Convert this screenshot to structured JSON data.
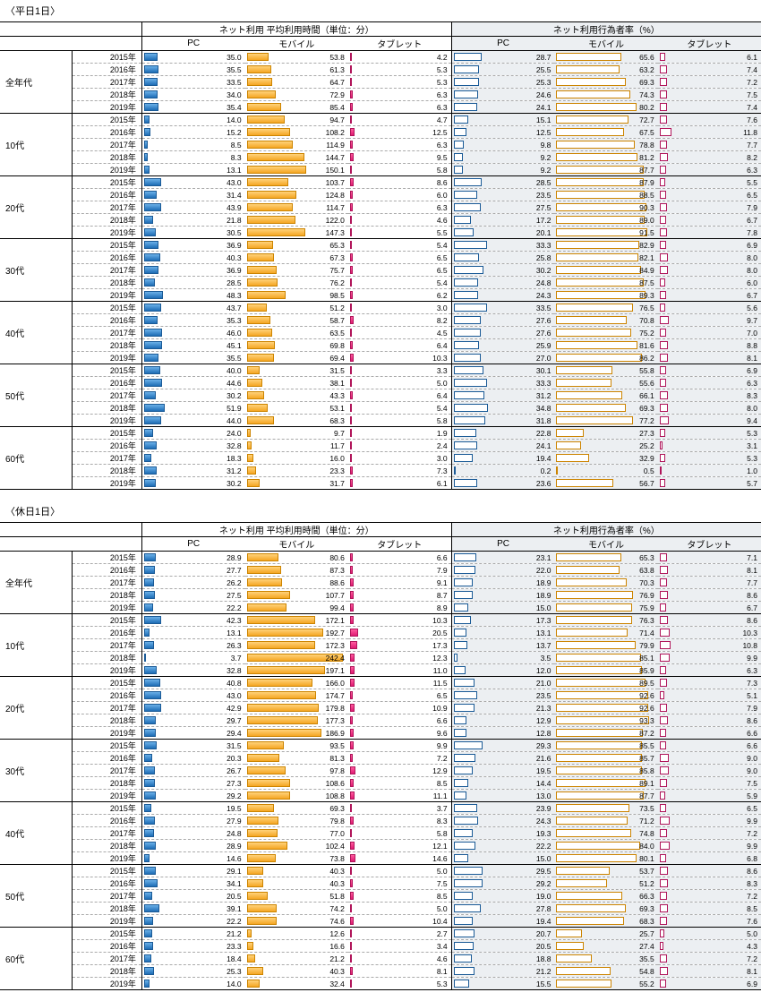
{
  "sections": [
    {
      "title": "〈平日1日〉",
      "header_time": "ネット利用 平均利用時間（単位：分）",
      "header_rate": "ネット利用行為者率（%）",
      "cols": [
        "PC",
        "モバイル",
        "タブレット",
        "PC",
        "モバイル",
        "タブレット"
      ],
      "groups": [
        {
          "age": "全年代",
          "rows": [
            [
              "2015年",
              35.0,
              53.8,
              4.2,
              28.7,
              65.6,
              6.1
            ],
            [
              "2016年",
              35.5,
              61.3,
              5.3,
              25.5,
              63.2,
              7.4
            ],
            [
              "2017年",
              33.5,
              64.7,
              5.3,
              25.3,
              69.3,
              7.2
            ],
            [
              "2018年",
              34.0,
              72.9,
              6.3,
              24.6,
              74.3,
              7.5
            ],
            [
              "2019年",
              35.4,
              85.4,
              6.3,
              24.1,
              80.2,
              7.4
            ]
          ]
        },
        {
          "age": "10代",
          "rows": [
            [
              "2015年",
              14.0,
              94.7,
              4.7,
              15.1,
              72.7,
              7.6
            ],
            [
              "2016年",
              15.2,
              108.2,
              12.5,
              12.5,
              67.5,
              11.8
            ],
            [
              "2017年",
              8.5,
              114.9,
              6.3,
              9.8,
              78.8,
              7.7
            ],
            [
              "2018年",
              8.3,
              144.7,
              9.5,
              9.2,
              81.2,
              8.2
            ],
            [
              "2019年",
              13.1,
              150.1,
              5.8,
              9.2,
              87.7,
              6.3
            ]
          ]
        },
        {
          "age": "20代",
          "rows": [
            [
              "2015年",
              43.0,
              103.7,
              8.6,
              28.5,
              87.9,
              5.5
            ],
            [
              "2016年",
              31.4,
              124.8,
              6.0,
              23.5,
              88.5,
              6.5
            ],
            [
              "2017年",
              43.9,
              114.7,
              6.3,
              27.5,
              90.3,
              7.9
            ],
            [
              "2018年",
              21.8,
              122.0,
              4.6,
              17.2,
              89.0,
              6.7
            ],
            [
              "2019年",
              30.5,
              147.3,
              5.5,
              20.1,
              91.5,
              7.8
            ]
          ]
        },
        {
          "age": "30代",
          "rows": [
            [
              "2015年",
              36.9,
              65.3,
              5.4,
              33.3,
              82.9,
              6.9
            ],
            [
              "2016年",
              40.3,
              67.3,
              6.5,
              25.8,
              82.1,
              8.0
            ],
            [
              "2017年",
              36.9,
              75.7,
              6.5,
              30.2,
              84.9,
              8.0
            ],
            [
              "2018年",
              28.5,
              76.2,
              5.4,
              24.8,
              87.5,
              6.0
            ],
            [
              "2019年",
              48.3,
              98.5,
              6.2,
              24.3,
              89.3,
              6.7
            ]
          ]
        },
        {
          "age": "40代",
          "rows": [
            [
              "2015年",
              43.7,
              51.2,
              3.0,
              33.5,
              76.5,
              5.6
            ],
            [
              "2016年",
              35.3,
              58.7,
              8.2,
              27.6,
              70.8,
              9.7
            ],
            [
              "2017年",
              46.0,
              63.5,
              4.5,
              27.6,
              75.2,
              7.0
            ],
            [
              "2018年",
              45.1,
              69.8,
              6.4,
              25.9,
              81.6,
              8.8
            ],
            [
              "2019年",
              35.5,
              69.4,
              10.3,
              27.0,
              86.2,
              8.1
            ]
          ]
        },
        {
          "age": "50代",
          "rows": [
            [
              "2015年",
              40.0,
              31.5,
              3.3,
              30.1,
              55.8,
              6.9
            ],
            [
              "2016年",
              44.6,
              38.1,
              5.0,
              33.3,
              55.6,
              6.3
            ],
            [
              "2017年",
              30.2,
              43.3,
              6.4,
              31.2,
              66.1,
              8.3
            ],
            [
              "2018年",
              51.9,
              53.1,
              5.4,
              34.8,
              69.3,
              8.0
            ],
            [
              "2019年",
              44.0,
              68.3,
              5.8,
              31.8,
              77.2,
              9.4
            ]
          ]
        },
        {
          "age": "60代",
          "rows": [
            [
              "2015年",
              24.0,
              9.7,
              1.9,
              22.8,
              27.3,
              5.3
            ],
            [
              "2016年",
              32.8,
              11.7,
              2.4,
              24.1,
              25.2,
              3.1
            ],
            [
              "2017年",
              18.3,
              16.0,
              3.0,
              19.4,
              32.9,
              5.3
            ],
            [
              "2018年",
              31.2,
              23.3,
              7.3,
              0.2,
              0.5,
              1.0
            ],
            [
              "2019年",
              30.2,
              31.7,
              6.1,
              23.6,
              56.7,
              5.7
            ]
          ]
        }
      ]
    },
    {
      "title": "〈休日1日〉",
      "header_time": "ネット利用 平均利用時間（単位：分）",
      "header_rate": "ネット利用行為者率（%）",
      "cols": [
        "PC",
        "モバイル",
        "タブレット",
        "PC",
        "モバイル",
        "タブレット"
      ],
      "groups": [
        {
          "age": "全年代",
          "rows": [
            [
              "2015年",
              28.9,
              80.6,
              6.6,
              23.1,
              65.3,
              7.1
            ],
            [
              "2016年",
              27.7,
              87.3,
              7.9,
              22.0,
              63.8,
              8.1
            ],
            [
              "2017年",
              26.2,
              88.6,
              9.1,
              18.9,
              70.3,
              7.7
            ],
            [
              "2018年",
              27.5,
              107.7,
              8.7,
              18.9,
              76.9,
              8.6
            ],
            [
              "2019年",
              22.2,
              99.4,
              8.9,
              15.0,
              75.9,
              6.7
            ]
          ]
        },
        {
          "age": "10代",
          "rows": [
            [
              "2015年",
              42.3,
              172.1,
              10.3,
              17.3,
              76.3,
              8.6
            ],
            [
              "2016年",
              13.1,
              192.7,
              20.5,
              13.1,
              71.4,
              10.3
            ],
            [
              "2017年",
              26.3,
              172.3,
              17.3,
              13.7,
              79.9,
              10.8
            ],
            [
              "2018年",
              3.7,
              242.4,
              12.3,
              3.5,
              85.1,
              9.9
            ],
            [
              "2019年",
              32.8,
              197.1,
              11.0,
              12.0,
              85.9,
              6.3
            ]
          ]
        },
        {
          "age": "20代",
          "rows": [
            [
              "2015年",
              40.8,
              166.0,
              11.5,
              21.0,
              89.5,
              7.3
            ],
            [
              "2016年",
              43.0,
              174.7,
              6.5,
              23.5,
              92.6,
              5.1
            ],
            [
              "2017年",
              42.9,
              179.8,
              10.9,
              21.3,
              92.6,
              7.9
            ],
            [
              "2018年",
              29.7,
              177.3,
              6.6,
              12.9,
              93.3,
              8.6
            ],
            [
              "2019年",
              29.4,
              186.9,
              9.6,
              12.8,
              87.2,
              6.6
            ]
          ]
        },
        {
          "age": "30代",
          "rows": [
            [
              "2015年",
              31.5,
              93.5,
              9.9,
              29.3,
              85.5,
              6.6
            ],
            [
              "2016年",
              20.3,
              81.3,
              7.2,
              21.6,
              85.7,
              9.0
            ],
            [
              "2017年",
              26.7,
              97.8,
              12.9,
              19.5,
              85.8,
              9.0
            ],
            [
              "2018年",
              27.3,
              108.6,
              8.5,
              14.4,
              89.1,
              7.5
            ],
            [
              "2019年",
              29.2,
              108.8,
              11.1,
              13.0,
              87.7,
              5.9
            ]
          ]
        },
        {
          "age": "40代",
          "rows": [
            [
              "2015年",
              19.5,
              69.3,
              3.7,
              23.9,
              73.5,
              6.5
            ],
            [
              "2016年",
              27.9,
              79.8,
              8.3,
              24.3,
              71.2,
              9.9
            ],
            [
              "2017年",
              24.8,
              77.0,
              5.8,
              19.3,
              74.8,
              7.2
            ],
            [
              "2018年",
              28.9,
              102.4,
              12.1,
              22.2,
              84.0,
              9.9
            ],
            [
              "2019年",
              14.6,
              73.8,
              14.6,
              15.0,
              80.1,
              6.8
            ]
          ]
        },
        {
          "age": "50代",
          "rows": [
            [
              "2015年",
              29.1,
              40.3,
              5.0,
              29.5,
              53.7,
              8.6
            ],
            [
              "2016年",
              34.1,
              40.3,
              7.5,
              29.2,
              51.2,
              8.3
            ],
            [
              "2017年",
              20.5,
              51.8,
              8.5,
              19.0,
              66.3,
              7.2
            ],
            [
              "2018年",
              39.1,
              74.2,
              5.0,
              27.8,
              69.3,
              8.5
            ],
            [
              "2019年",
              22.2,
              74.6,
              10.4,
              19.4,
              68.3,
              7.6
            ]
          ]
        },
        {
          "age": "60代",
          "rows": [
            [
              "2015年",
              21.2,
              12.6,
              2.7,
              20.7,
              25.7,
              5.0
            ],
            [
              "2016年",
              23.3,
              16.6,
              3.4,
              20.5,
              27.4,
              4.3
            ],
            [
              "2017年",
              18.4,
              21.2,
              4.6,
              18.8,
              35.5,
              7.2
            ],
            [
              "2018年",
              25.3,
              40.3,
              8.1,
              21.2,
              54.8,
              8.1
            ],
            [
              "2019年",
              14.0,
              32.4,
              5.3,
              15.5,
              55.2,
              6.9
            ]
          ]
        }
      ]
    }
  ],
  "max_time": 250,
  "max_rate": 100,
  "colors": {
    "pc": "#2c7cc4",
    "mobile": "#f5a623",
    "tablet": "#e01b73"
  }
}
